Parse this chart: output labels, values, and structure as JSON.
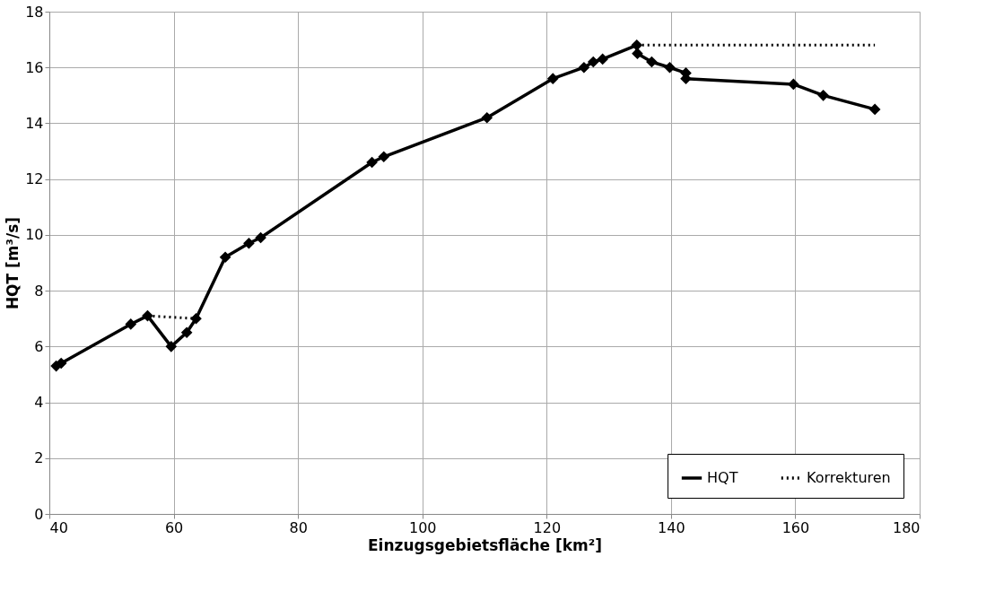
{
  "chart_data": {
    "type": "line",
    "xlabel": "Einzugsgebietsfläche [km²]",
    "ylabel": "HQT [m³/s]",
    "xlim": [
      40,
      180
    ],
    "xticks": [
      40,
      60,
      80,
      100,
      120,
      140,
      160,
      180
    ],
    "ylim": [
      0,
      18
    ],
    "yticks": [
      0,
      2,
      4,
      6,
      8,
      10,
      12,
      14,
      16,
      18
    ],
    "grid": true,
    "legend": "bottom right",
    "series": [
      {
        "name": "HQT",
        "color": "#000000",
        "marker": "diamond",
        "line_style": "solid",
        "x": [
          41.1,
          41.9,
          53.1,
          55.8,
          59.6,
          62.1,
          63.6,
          68.3,
          72.1,
          74.0,
          91.9,
          93.8,
          110.4,
          121.0,
          126.0,
          127.5,
          129.0,
          134.5,
          134.6,
          136.9,
          139.8,
          142.4,
          142.4,
          159.7,
          164.5,
          172.8
        ],
        "values": [
          5.3,
          5.4,
          6.8,
          7.1,
          6.0,
          6.5,
          7.0,
          9.2,
          9.7,
          9.9,
          12.6,
          12.8,
          14.2,
          15.6,
          16.0,
          16.2,
          16.3,
          16.8,
          16.5,
          16.2,
          16.0,
          15.8,
          15.6,
          15.4,
          15.0,
          14.5
        ]
      },
      {
        "name": "Korrekturen",
        "color": "#000000",
        "marker": "none",
        "line_style": "dotted",
        "x": [
          55.8,
          63.6,
          100,
          134.5,
          172.8
        ],
        "values": [
          7.1,
          7.0,
          null,
          16.8,
          16.8
        ]
      }
    ]
  }
}
